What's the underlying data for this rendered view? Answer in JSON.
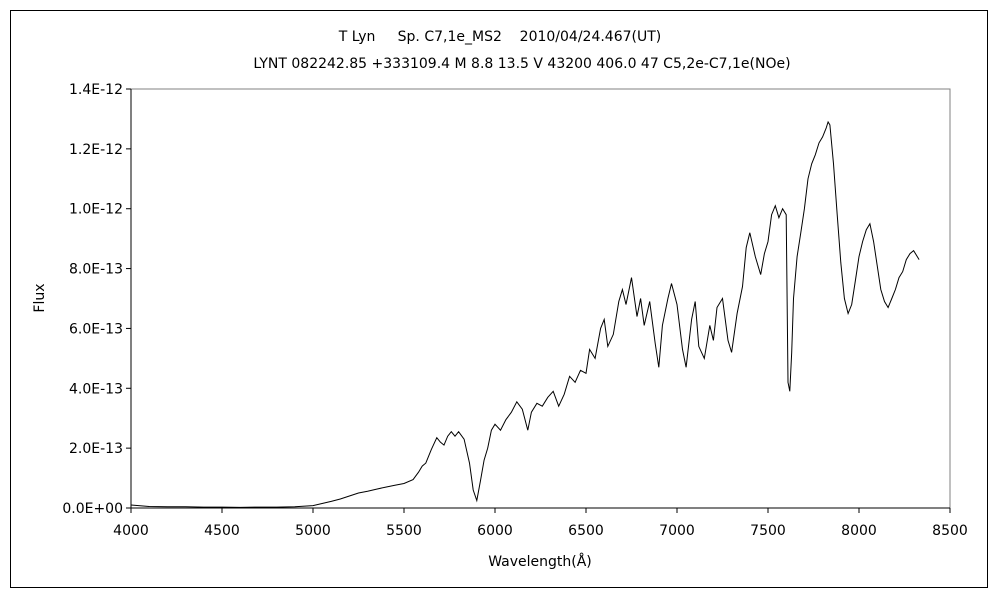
{
  "chart_data": {
    "type": "line",
    "title_line1": "T Lyn     Sp. C7,1e_MS2    2010/04/24.467(UT)",
    "title_line2": "LYNT 082242.85 +333109.4 M 8.8 13.5 V 43200 406.0 47 C5,2e-C7,1e(NOe)",
    "xlabel": "Wavelength(Å)",
    "ylabel": "Flux",
    "xlim": [
      4000,
      8500
    ],
    "ylim": [
      0,
      1.4e-12
    ],
    "x_ticks": [
      4000,
      4500,
      5000,
      5500,
      6000,
      6500,
      7000,
      7500,
      8000,
      8500
    ],
    "x_tick_labels": [
      "4000",
      "4500",
      "5000",
      "5500",
      "6000",
      "6500",
      "7000",
      "7500",
      "8000",
      "8500"
    ],
    "y_ticks": [
      0,
      2e-13,
      4e-13,
      6e-13,
      8e-13,
      1e-12,
      1.2e-12,
      1.4e-12
    ],
    "y_tick_labels": [
      "0.0E+00",
      "2.0E-13",
      "4.0E-13",
      "6.0E-13",
      "8.0E-13",
      "1.0E-12",
      "1.2E-12",
      "1.4E-12"
    ],
    "grid": false,
    "legend": "none",
    "line_color": "#000000",
    "series": [
      {
        "x": [
          4000,
          4100,
          4200,
          4300,
          4400,
          4500,
          4600,
          4700,
          4800,
          4900,
          5000,
          5050,
          5100,
          5150,
          5200,
          5250,
          5300,
          5350,
          5400,
          5450,
          5500,
          5550,
          5580,
          5600,
          5620,
          5650,
          5680,
          5700,
          5720,
          5740,
          5760,
          5780,
          5800,
          5830,
          5860,
          5880,
          5900,
          5920,
          5940,
          5960,
          5980,
          6000,
          6030,
          6060,
          6090,
          6120,
          6150,
          6180,
          6200,
          6230,
          6260,
          6290,
          6320,
          6350,
          6380,
          6410,
          6440,
          6470,
          6500,
          6520,
          6550,
          6580,
          6600,
          6620,
          6650,
          6680,
          6700,
          6720,
          6750,
          6780,
          6800,
          6820,
          6850,
          6880,
          6900,
          6920,
          6950,
          6970,
          7000,
          7030,
          7050,
          7080,
          7100,
          7120,
          7150,
          7180,
          7200,
          7220,
          7250,
          7280,
          7300,
          7330,
          7360,
          7380,
          7400,
          7430,
          7460,
          7480,
          7500,
          7520,
          7540,
          7560,
          7580,
          7600,
          7610,
          7620,
          7630,
          7640,
          7660,
          7680,
          7700,
          7720,
          7740,
          7760,
          7780,
          7800,
          7820,
          7830,
          7840,
          7860,
          7880,
          7900,
          7920,
          7940,
          7960,
          7980,
          8000,
          8020,
          8040,
          8060,
          8080,
          8100,
          8120,
          8140,
          8160,
          8180,
          8200,
          8220,
          8240,
          8260,
          8280,
          8300,
          8330
        ],
        "y": [
          1e-14,
          5e-15,
          4e-15,
          4e-15,
          3e-15,
          3e-15,
          2e-15,
          3e-15,
          3e-15,
          4e-15,
          8e-15,
          1.5e-14,
          2.2e-14,
          3e-14,
          4e-14,
          5e-14,
          5.6e-14,
          6.3e-14,
          7e-14,
          7.6e-14,
          8.2e-14,
          9.5e-14,
          1.2e-13,
          1.4e-13,
          1.5e-13,
          1.95e-13,
          2.35e-13,
          2.2e-13,
          2.1e-13,
          2.4e-13,
          2.55e-13,
          2.4e-13,
          2.55e-13,
          2.3e-13,
          1.5e-13,
          6e-14,
          2.5e-14,
          9e-14,
          1.6e-13,
          2e-13,
          2.6e-13,
          2.8e-13,
          2.6e-13,
          2.95e-13,
          3.2e-13,
          3.55e-13,
          3.3e-13,
          2.6e-13,
          3.2e-13,
          3.5e-13,
          3.4e-13,
          3.7e-13,
          3.9e-13,
          3.4e-13,
          3.8e-13,
          4.4e-13,
          4.2e-13,
          4.6e-13,
          4.5e-13,
          5.3e-13,
          5e-13,
          6e-13,
          6.3e-13,
          5.4e-13,
          5.8e-13,
          6.9e-13,
          7.3e-13,
          6.8e-13,
          7.7e-13,
          6.4e-13,
          7e-13,
          6.1e-13,
          6.9e-13,
          5.5e-13,
          4.7e-13,
          6.1e-13,
          7e-13,
          7.5e-13,
          6.8e-13,
          5.3e-13,
          4.7e-13,
          6.3e-13,
          6.9e-13,
          5.4e-13,
          5e-13,
          6.1e-13,
          5.6e-13,
          6.7e-13,
          7e-13,
          5.6e-13,
          5.2e-13,
          6.5e-13,
          7.4e-13,
          8.7e-13,
          9.2e-13,
          8.4e-13,
          7.8e-13,
          8.5e-13,
          8.9e-13,
          9.8e-13,
          1.01e-12,
          9.7e-13,
          1e-12,
          9.8e-13,
          4.2e-13,
          3.9e-13,
          5.2e-13,
          7e-13,
          8.4e-13,
          9.2e-13,
          1e-12,
          1.1e-12,
          1.15e-12,
          1.18e-12,
          1.22e-12,
          1.24e-12,
          1.27e-12,
          1.29e-12,
          1.28e-12,
          1.15e-12,
          9.8e-13,
          8.2e-13,
          7e-13,
          6.5e-13,
          6.8e-13,
          7.6e-13,
          8.4e-13,
          8.9e-13,
          9.3e-13,
          9.5e-13,
          8.9e-13,
          8.1e-13,
          7.3e-13,
          6.9e-13,
          6.7e-13,
          7e-13,
          7.3e-13,
          7.7e-13,
          7.9e-13,
          8.3e-13,
          8.5e-13,
          8.6e-13,
          8.3e-13
        ]
      }
    ]
  }
}
